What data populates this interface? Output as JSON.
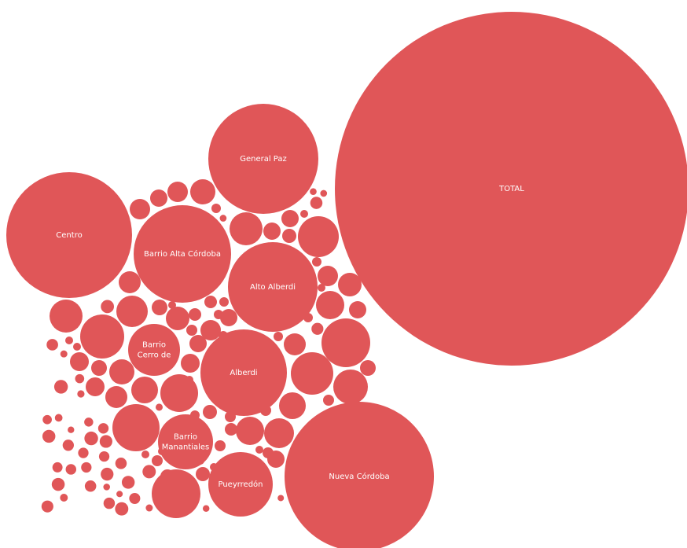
{
  "chart_data": {
    "type": "bubble",
    "title": "",
    "colors": {
      "bubble": "#e05658",
      "label": "#ffffff",
      "background": "#ffffff"
    },
    "labeled_bubbles": [
      {
        "label": "TOTAL",
        "label_lines": [
          "TOTAL"
        ]
      },
      {
        "label": "General Paz",
        "label_lines": [
          "General Paz"
        ]
      },
      {
        "label": "Centro",
        "label_lines": [
          "Centro"
        ]
      },
      {
        "label": "Barrio Alta Córdoba",
        "label_lines": [
          "Barrio Alta Córdoba"
        ]
      },
      {
        "label": "Alto Alberdi",
        "label_lines": [
          "Alto Alberdi"
        ]
      },
      {
        "label": "Barrio Cerro de",
        "label_lines": [
          "Barrio",
          "Cerro de"
        ]
      },
      {
        "label": "Alberdi",
        "label_lines": [
          "Alberdi"
        ]
      },
      {
        "label": "Barrio Manantiales",
        "label_lines": [
          "Barrio",
          "Manantiales"
        ]
      },
      {
        "label": "Pueyrredón",
        "label_lines": [
          "Pueyrredón"
        ]
      },
      {
        "label": "Nueva Córdoba",
        "label_lines": [
          "Nueva Córdoba"
        ]
      }
    ],
    "unlabeled_bubble_count": 116
  }
}
